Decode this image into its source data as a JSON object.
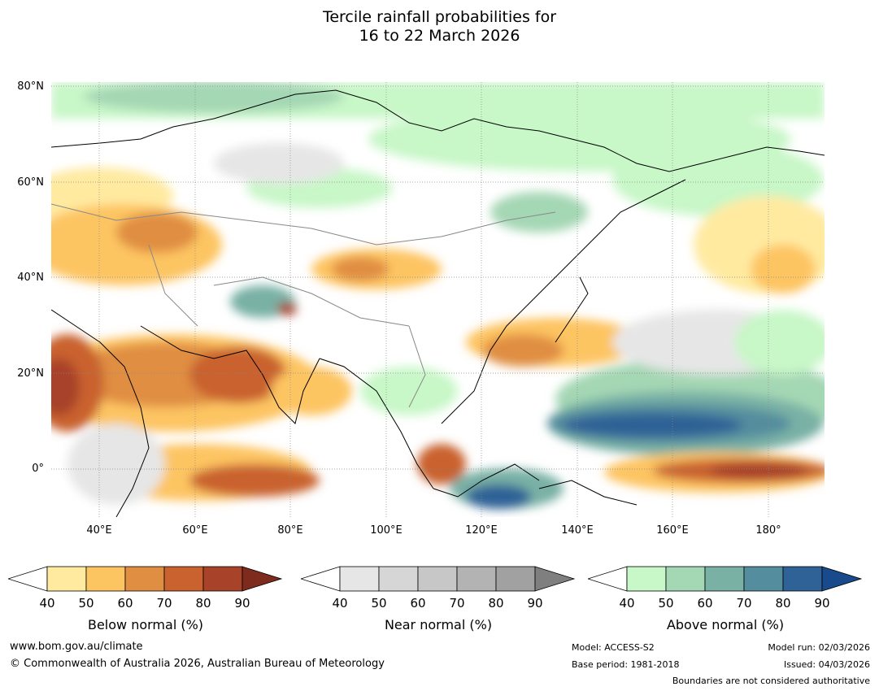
{
  "title": {
    "line1": "Tercile rainfall probabilities for",
    "line2": "16 to 22 March 2026"
  },
  "map": {
    "lat_labels": [
      "80°N",
      "60°N",
      "40°N",
      "20°N",
      "0°"
    ],
    "lon_labels": [
      "40°E",
      "60°E",
      "80°E",
      "100°E",
      "120°E",
      "140°E",
      "160°E",
      "180°"
    ]
  },
  "legends": [
    {
      "title": "Below normal (%)",
      "ticks": [
        "40",
        "50",
        "60",
        "70",
        "80",
        "90"
      ],
      "colors": [
        "#ffffff",
        "#ffeaa0",
        "#fdc462",
        "#e08e42",
        "#c9622f",
        "#a8432a",
        "#7e2a1c"
      ]
    },
    {
      "title": "Near normal (%)",
      "ticks": [
        "40",
        "50",
        "60",
        "70",
        "80",
        "90"
      ],
      "colors": [
        "#ffffff",
        "#e6e6e6",
        "#d6d6d6",
        "#c7c7c7",
        "#b3b3b3",
        "#a1a1a1",
        "#7f7f7f"
      ]
    },
    {
      "title": "Above normal (%)",
      "ticks": [
        "40",
        "50",
        "60",
        "70",
        "80",
        "90"
      ],
      "colors": [
        "#ffffff",
        "#c8f7c8",
        "#a4d7b4",
        "#79b1a5",
        "#548d9e",
        "#2f6296",
        "#184a8c"
      ]
    }
  ],
  "footer": {
    "url": "www.bom.gov.au/climate",
    "copyright": "© Commonwealth of Australia 2026, Australian Bureau of Meteorology",
    "model": "Model: ACCESS-S2",
    "base_period": "Base period: 1981-2018",
    "model_run": "Model run: 02/03/2026",
    "issued": "Issued: 04/03/2026",
    "disclaimer": "Boundaries are not considered authoritative"
  }
}
